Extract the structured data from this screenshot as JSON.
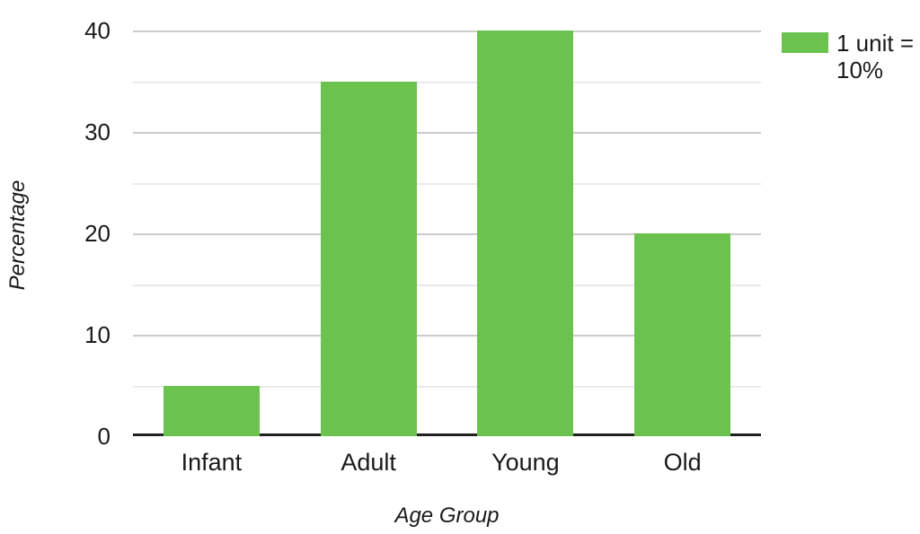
{
  "chart_data": {
    "type": "bar",
    "title": "",
    "categories": [
      "Infant",
      "Adult",
      "Young",
      "Old"
    ],
    "values": [
      5,
      35,
      40,
      20
    ],
    "xlabel": "Age Group",
    "ylabel": "Percentage",
    "ylim": [
      0,
      40
    ],
    "y_major_ticks": [
      0,
      10,
      20,
      30,
      40
    ],
    "y_minor_step": 5,
    "grid": "major and minor horizontal gridlines",
    "legend_position": "top-right outside plot"
  },
  "legend": {
    "label": "1 unit = 10%",
    "swatch_icon": "green-square-swatch"
  },
  "colors": {
    "bar": "#6cc24e",
    "axis_line": "#212121",
    "major_grid": "#cccccc",
    "minor_grid": "#e9e9e9",
    "text": "#1a1a1a",
    "background": "#ffffff"
  }
}
